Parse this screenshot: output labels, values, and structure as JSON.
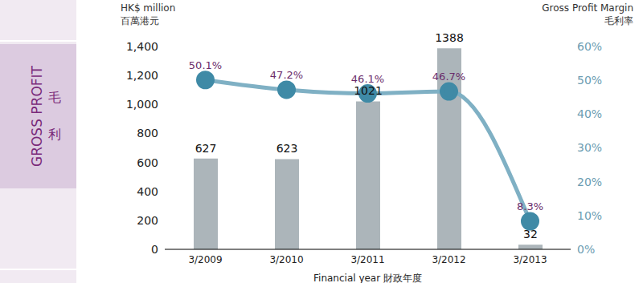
{
  "chart_data": {
    "type": "bar",
    "categories": [
      "3/2009",
      "3/2010",
      "3/2011",
      "3/2012",
      "3/2013"
    ],
    "series": [
      {
        "name": "GROSS PROFIT",
        "type": "bar",
        "color": "#9ea8ae",
        "values": [
          627,
          623,
          1021,
          1388,
          32
        ]
      },
      {
        "name": "Gross Profit Margin",
        "type": "line",
        "axis": "y2",
        "color": "#7fb0c4",
        "marker": "circle",
        "values": [
          50.1,
          47.2,
          46.1,
          46.7,
          8.3
        ],
        "value_labels": [
          "50.1%",
          "47.2%",
          "46.1%",
          "46.7%",
          "8.3%"
        ]
      }
    ],
    "ylim": [
      0,
      1400
    ],
    "yticks": [
      0,
      200,
      400,
      600,
      800,
      {
        "value": 1000,
        "label": "1,000"
      },
      {
        "value": 1200,
        "label": "1,200"
      },
      {
        "value": 1400,
        "label": "1,400"
      }
    ],
    "y2lim": [
      0,
      60
    ],
    "y2ticks": [
      {
        "value": 0,
        "label": "0%"
      },
      {
        "value": 10,
        "label": "10%"
      },
      {
        "value": 20,
        "label": "20%"
      },
      {
        "value": 30,
        "label": "30%"
      },
      {
        "value": 40,
        "label": "40%"
      },
      {
        "value": 50,
        "label": "50%"
      },
      {
        "value": 60,
        "label": "60%"
      }
    ],
    "ylabel": [
      "HK$ million",
      "百萬港元"
    ],
    "y2label": [
      "Gross Profit Margin",
      "毛利率"
    ],
    "xlabel": "Financial year 財政年度",
    "annotations": [
      "GROSS PROFIT",
      "毛",
      "利"
    ],
    "data_labels": true,
    "grid": false
  }
}
